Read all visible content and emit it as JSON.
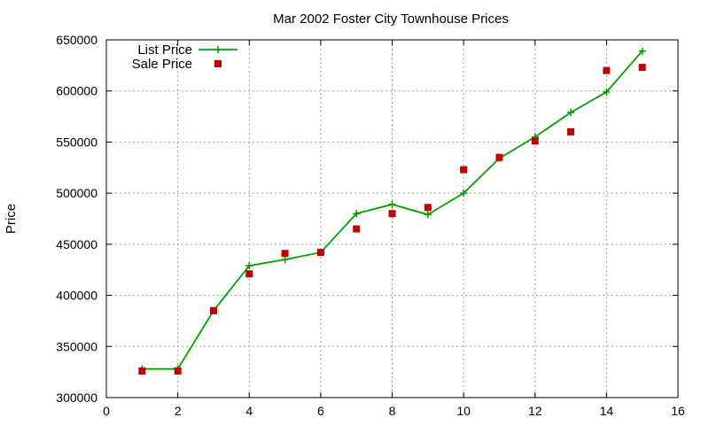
{
  "chart_data": {
    "type": "line",
    "title": "Mar 2002 Foster City Townhouse Prices",
    "xlabel": "",
    "ylabel": "Price",
    "xlim": [
      0,
      16
    ],
    "ylim": [
      300000,
      650000
    ],
    "x_ticks": [
      0,
      2,
      4,
      6,
      8,
      10,
      12,
      14,
      16
    ],
    "y_ticks": [
      300000,
      350000,
      400000,
      450000,
      500000,
      550000,
      600000,
      650000
    ],
    "grid": true,
    "legend_position": "top-left",
    "series": [
      {
        "name": "List Price",
        "style": "line-plus",
        "color": "#00a000",
        "x": [
          1,
          2,
          3,
          4,
          5,
          6,
          7,
          8,
          9,
          10,
          11,
          12,
          13,
          14,
          15
        ],
        "y": [
          328000,
          328000,
          385000,
          429000,
          435000,
          442000,
          480000,
          489000,
          479000,
          500000,
          534000,
          555000,
          579000,
          599000,
          639000
        ]
      },
      {
        "name": "Sale Price",
        "style": "square-points",
        "color": "#c00000",
        "x": [
          1,
          2,
          3,
          4,
          5,
          6,
          7,
          8,
          9,
          10,
          11,
          12,
          13,
          14,
          15
        ],
        "y": [
          326000,
          326000,
          385000,
          421000,
          441000,
          442000,
          465000,
          480000,
          486000,
          523000,
          535000,
          551000,
          560000,
          620000,
          623000
        ]
      }
    ]
  }
}
